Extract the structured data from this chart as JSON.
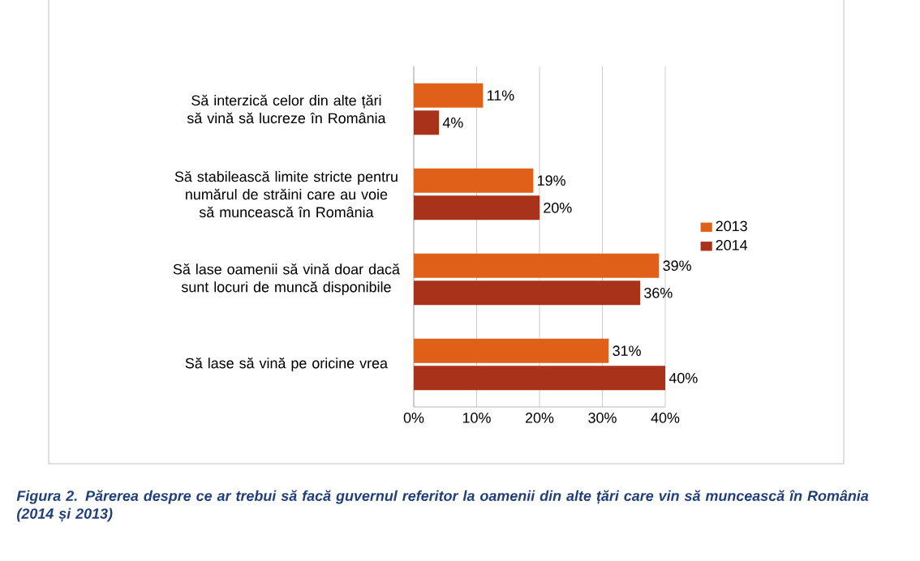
{
  "chart_data": {
    "type": "bar",
    "orientation": "horizontal",
    "categories": [
      "Să interzică celor din alte țări să vină să lucreze în România",
      "Să stabilească limite stricte pentru numărul de străini care au voie să muncească în România",
      "Să lase oamenii să vină doar dacă sunt locuri de muncă disponibile",
      "Să lase să vină pe oricine vrea"
    ],
    "series": [
      {
        "name": "2013",
        "color": "#e0601a",
        "values": [
          11,
          19,
          39,
          31
        ],
        "value_labels": [
          "11%",
          "19%",
          "39%",
          "31%"
        ]
      },
      {
        "name": "2014",
        "color": "#a8321a",
        "values": [
          4,
          20,
          36,
          40
        ],
        "value_labels": [
          "4%",
          "20%",
          "36%",
          "40%"
        ]
      }
    ],
    "xlim": [
      0,
      40
    ],
    "xticks": [
      {
        "value": 0,
        "label": "0%"
      },
      {
        "value": 10,
        "label": "10%"
      },
      {
        "value": 20,
        "label": "20%"
      },
      {
        "value": 30,
        "label": "30%"
      },
      {
        "value": 40,
        "label": "40%"
      }
    ],
    "grid": "x",
    "legend": "right",
    "annotations": [
      "Figura 2. Părerea despre ce ar trebui să facă guvernul referitor la oamenii din alte țări care vin să muncească în România (2014 și 2013)"
    ]
  }
}
